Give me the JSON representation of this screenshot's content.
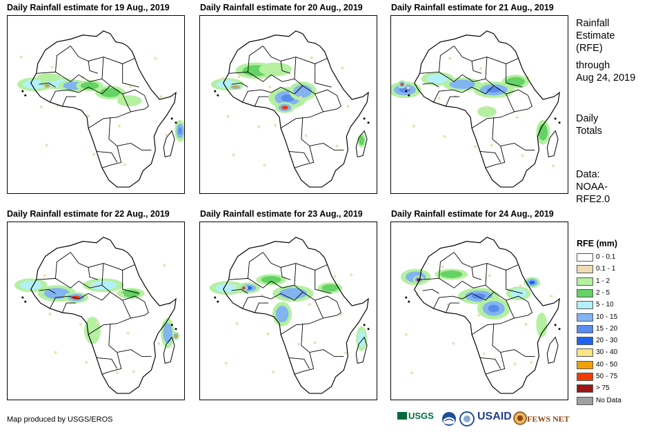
{
  "panels": [
    {
      "title": "Daily Rainfall estimate for 19 Aug., 2019"
    },
    {
      "title": "Daily Rainfall estimate for 20 Aug., 2019"
    },
    {
      "title": "Daily Rainfall estimate for 21 Aug., 2019"
    },
    {
      "title": "Daily Rainfall estimate for 22 Aug., 2019"
    },
    {
      "title": "Daily Rainfall estimate for 23 Aug., 2019"
    },
    {
      "title": "Daily Rainfall estimate for 24 Aug., 2019"
    }
  ],
  "side": {
    "title_lines": [
      "Rainfall",
      "Estimate",
      "(RFE)"
    ],
    "through_lines": [
      "through",
      "Aug 24, 2019"
    ],
    "totals_lines": [
      "Daily",
      "Totals"
    ],
    "data_lines": [
      "Data:",
      "NOAA-",
      "RFE2.0"
    ]
  },
  "legend": {
    "title": "RFE (mm)",
    "items": [
      {
        "label": "0 - 0.1",
        "color": "#ffffff"
      },
      {
        "label": "0.1 - 1",
        "color": "#f0dcb4"
      },
      {
        "label": "1 - 2",
        "color": "#b4f0a0"
      },
      {
        "label": "2 - 5",
        "color": "#64d264"
      },
      {
        "label": "5 - 10",
        "color": "#b4f0fa"
      },
      {
        "label": "10 - 15",
        "color": "#82b4f0"
      },
      {
        "label": "15 - 20",
        "color": "#5a8cf0"
      },
      {
        "label": "20 - 30",
        "color": "#1e64f0"
      },
      {
        "label": "30 - 40",
        "color": "#fae682"
      },
      {
        "label": "40 - 50",
        "color": "#f0a000"
      },
      {
        "label": "50 - 75",
        "color": "#f03c00"
      },
      {
        "label": "> 75",
        "color": "#a01414"
      },
      {
        "label": "No Data",
        "color": "#a0a0a0"
      }
    ]
  },
  "credit": "Map produced by USGS/EROS",
  "logos": {
    "usgs": "USGS",
    "usaid": "USAID",
    "fews": "FEWS NET"
  }
}
